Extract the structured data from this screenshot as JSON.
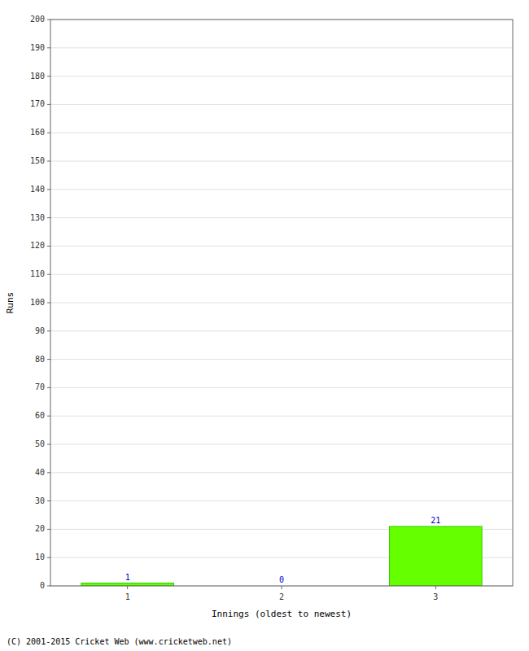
{
  "chart_data": {
    "type": "bar",
    "categories": [
      "1",
      "2",
      "3"
    ],
    "values": [
      1,
      0,
      21
    ],
    "color": "#66ff00",
    "xlabel": "Innings (oldest to newest)",
    "ylabel": "Runs",
    "ylim": [
      0,
      200
    ],
    "yticks": [
      0,
      10,
      20,
      30,
      40,
      50,
      60,
      70,
      80,
      90,
      100,
      110,
      120,
      130,
      140,
      150,
      160,
      170,
      180,
      190,
      200
    ],
    "grid": true,
    "data_labels": true,
    "annotations": [
      "(C) 2001-2015 Cricket Web (www.cricketweb.net)"
    ]
  }
}
